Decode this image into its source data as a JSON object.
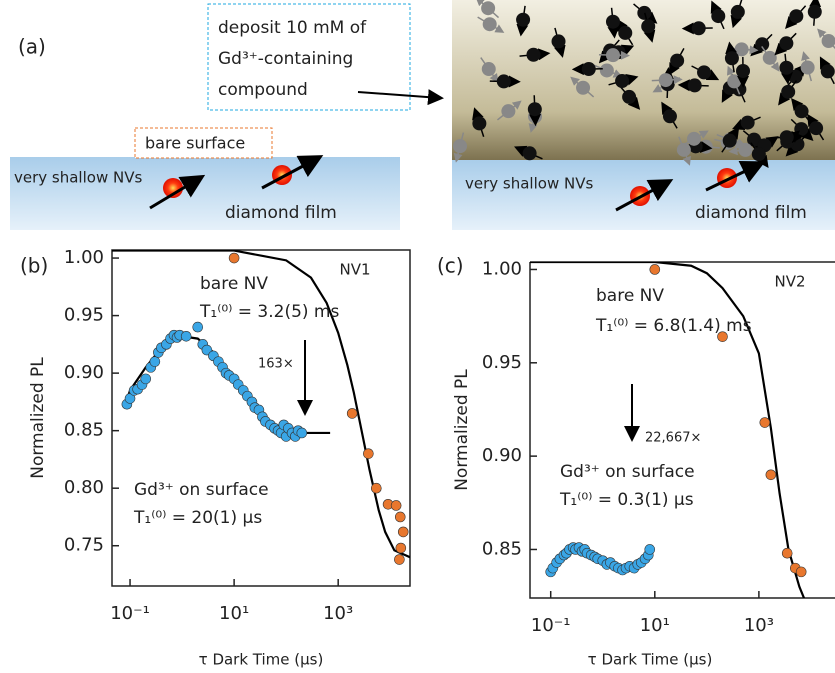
{
  "panel_a": {
    "label": "(a)",
    "deposit_note": [
      "deposit 10 mM of",
      "Gd³⁺-containing",
      "compound"
    ],
    "bare_surface": "bare surface",
    "left_labels": [
      "very shallow NVs",
      "diamond film"
    ],
    "right_labels": [
      "very shallow NVs",
      "diamond film"
    ]
  },
  "chart_data": [
    {
      "type": "scatter",
      "panel_label": "(b)",
      "xlabel": "τ  Dark Time (µs)",
      "ylabel": "Normalized PL",
      "xlog": true,
      "xlim": [
        0.045,
        24000
      ],
      "ylim": [
        0.715,
        1.007
      ],
      "xticks": [
        {
          "value": 0.1,
          "label": "10⁻¹"
        },
        {
          "value": 10,
          "label": "10¹"
        },
        {
          "value": 1000,
          "label": "10³"
        }
      ],
      "yticks": [
        {
          "value": 1,
          "label": "1.00"
        },
        0.95,
        {
          "value": 0.9,
          "label": "0.90"
        },
        0.85,
        {
          "value": 0.8,
          "label": "0.80"
        },
        0.75
      ],
      "annotations": [
        "bare NV",
        "T₁⁽⁰⁾ = 3.2(5) ms",
        "163×",
        "Gd³⁺ on surface",
        "T₁⁽⁰⁾ = 20(1) µs",
        "NV1"
      ],
      "annotation_colors": [
        "#e8772e",
        "#e8772e",
        "#222222",
        "#1fa8e0",
        "#1fa8e0",
        "#222222"
      ],
      "series": [
        {
          "mode": "line",
          "color": "#000000",
          "x": [
            0.045,
            10,
            100,
            300,
            600,
            1000,
            1500,
            2000,
            3000,
            4000,
            6000,
            8000,
            12000,
            24000
          ],
          "values": [
            1.0065,
            1.0065,
            0.998,
            0.983,
            0.961,
            0.935,
            0.907,
            0.883,
            0.844,
            0.816,
            0.781,
            0.762,
            0.746,
            0.74
          ]
        },
        {
          "mode": "line",
          "color": "#000000",
          "x": [
            0.08,
            0.1,
            0.2,
            0.4,
            0.7,
            1,
            2,
            4,
            8,
            15,
            30,
            60,
            100,
            200,
            700
          ],
          "values": [
            0.872,
            0.885,
            0.905,
            0.922,
            0.93,
            0.932,
            0.93,
            0.918,
            0.9,
            0.882,
            0.866,
            0.855,
            0.85,
            0.848,
            0.848
          ]
        },
        {
          "mode": "markers",
          "color": "#3aa6e6",
          "x": [
            0.087,
            0.1,
            0.12,
            0.14,
            0.17,
            0.2,
            0.25,
            0.3,
            0.35,
            0.4,
            0.5,
            0.6,
            0.7,
            0.8,
            0.9,
            1.2,
            2,
            2.5,
            3,
            4,
            5,
            6,
            7,
            8,
            10,
            12,
            15,
            18,
            22,
            25,
            30,
            35,
            40,
            50,
            60,
            70,
            80,
            90,
            100,
            110,
            130,
            150,
            170,
            200
          ],
          "values": [
            0.873,
            0.878,
            0.885,
            0.886,
            0.89,
            0.895,
            0.905,
            0.91,
            0.918,
            0.922,
            0.925,
            0.93,
            0.933,
            0.931,
            0.933,
            0.932,
            0.94,
            0.925,
            0.92,
            0.915,
            0.91,
            0.905,
            0.9,
            0.898,
            0.895,
            0.89,
            0.885,
            0.88,
            0.875,
            0.87,
            0.868,
            0.862,
            0.858,
            0.855,
            0.852,
            0.85,
            0.848,
            0.855,
            0.845,
            0.852,
            0.848,
            0.845,
            0.85,
            0.848
          ]
        },
        {
          "mode": "markers",
          "color": "#e8772e",
          "x": [
            10,
            1860,
            3800,
            5400,
            9100,
            13000,
            15600,
            17800,
            16000,
            15000
          ],
          "values": [
            1.0,
            0.865,
            0.83,
            0.8,
            0.786,
            0.785,
            0.775,
            0.762,
            0.748,
            0.738
          ]
        }
      ]
    },
    {
      "type": "scatter",
      "panel_label": "(c)",
      "xlabel": "τ  Dark Time (µs)",
      "ylabel": "Normalized PL",
      "xlog": true,
      "xlim": [
        0.04,
        29000
      ],
      "ylim": [
        0.824,
        1.004
      ],
      "xticks": [
        {
          "value": 0.1,
          "label": "10⁻¹"
        },
        {
          "value": 10,
          "label": "10¹"
        },
        {
          "value": 1000,
          "label": "10³"
        }
      ],
      "yticks": [
        {
          "value": 1,
          "label": "1.00"
        },
        0.95,
        {
          "value": 0.9,
          "label": "0.90"
        },
        0.85
      ],
      "annotations": [
        "bare NV",
        "T₁⁽⁰⁾ = 6.8(1.4) ms",
        "22,667×",
        "Gd³⁺ on surface",
        "T₁⁽⁰⁾ = 0.3(1) µs",
        "NV2"
      ],
      "annotation_colors": [
        "#e8772e",
        "#e8772e",
        "#222222",
        "#1fa8e0",
        "#1fa8e0",
        "#222222"
      ],
      "series": [
        {
          "mode": "line",
          "color": "#000000",
          "x": [
            0.04,
            10,
            50,
            100,
            200,
            500,
            1000,
            1700,
            2500,
            3700,
            6000,
            9000
          ],
          "values": [
            1.004,
            1.004,
            1.002,
            0.998,
            0.99,
            0.975,
            0.955,
            0.915,
            0.88,
            0.85,
            0.83,
            0.818
          ]
        },
        {
          "mode": "line",
          "color": "#000000",
          "x": [
            0.1,
            0.15,
            0.25,
            0.4,
            0.6,
            1,
            1.5,
            2.5,
            4,
            6,
            8
          ],
          "values": [
            0.84,
            0.845,
            0.849,
            0.85,
            0.848,
            0.845,
            0.842,
            0.84,
            0.841,
            0.843,
            0.846
          ]
        },
        {
          "mode": "markers",
          "color": "#3aa6e6",
          "x": [
            0.1,
            0.11,
            0.13,
            0.15,
            0.18,
            0.2,
            0.23,
            0.27,
            0.3,
            0.35,
            0.4,
            0.45,
            0.5,
            0.6,
            0.7,
            0.8,
            1,
            1.2,
            1.4,
            1.7,
            2,
            2.4,
            2.8,
            3.3,
            4,
            4.7,
            5.5,
            6.5,
            7.5,
            8
          ],
          "values": [
            0.838,
            0.84,
            0.843,
            0.845,
            0.847,
            0.848,
            0.85,
            0.851,
            0.85,
            0.851,
            0.849,
            0.85,
            0.848,
            0.847,
            0.846,
            0.845,
            0.844,
            0.842,
            0.843,
            0.841,
            0.84,
            0.839,
            0.84,
            0.841,
            0.84,
            0.842,
            0.843,
            0.845,
            0.847,
            0.85
          ]
        },
        {
          "mode": "markers",
          "color": "#e8772e",
          "x": [
            10,
            200,
            1300,
            1700,
            3500,
            5000,
            6500
          ],
          "values": [
            1.0,
            0.964,
            0.918,
            0.89,
            0.848,
            0.84,
            0.838
          ]
        }
      ]
    }
  ]
}
